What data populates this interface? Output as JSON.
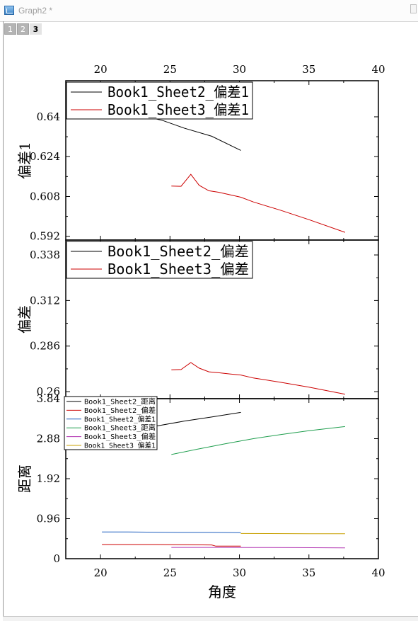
{
  "window": {
    "title": "Graph2 *",
    "layer_tabs": [
      {
        "label": "1",
        "active": false
      },
      {
        "label": "2",
        "active": false
      },
      {
        "label": "3",
        "active": true
      }
    ]
  },
  "chart_data": [
    {
      "type": "line",
      "panel": "top",
      "ylabel": "偏差1",
      "xlim": [
        17.5,
        40
      ],
      "ylim": [
        0.5905,
        0.6545
      ],
      "yticks": [
        "0.592",
        "0.608",
        "0.624",
        "0.64"
      ],
      "top_xticks": [
        "20",
        "25",
        "30",
        "35",
        "40"
      ],
      "legend_position": "top-left",
      "grid": false,
      "series": [
        {
          "name": "Book1_Sheet2_偏差1",
          "color": "#000000",
          "x": [
            20.1,
            22,
            24.5,
            26,
            28,
            30.1
          ],
          "y": [
            0.644,
            0.6418,
            0.6385,
            0.6355,
            0.6322,
            0.6265
          ]
        },
        {
          "name": "Book1_Sheet3_偏差1",
          "color": "#cc0000",
          "x": [
            25.1,
            25.8,
            26.5,
            27.1,
            27.8,
            28.5,
            29.3,
            30.1,
            31,
            33,
            35,
            37.6
          ],
          "y": [
            0.6122,
            0.6121,
            0.6169,
            0.6125,
            0.6103,
            0.6097,
            0.6087,
            0.6077,
            0.6058,
            0.6024,
            0.5987,
            0.5936
          ]
        }
      ]
    },
    {
      "type": "line",
      "panel": "middle",
      "ylabel": "偏差",
      "xlim": [
        17.5,
        40
      ],
      "ylim": [
        0.256,
        0.3465
      ],
      "yticks": [
        "0.26",
        "0.286",
        "0.312",
        "0.338"
      ],
      "legend_position": "top-left",
      "grid": false,
      "series": [
        {
          "name": "Book1_Sheet2_偏差",
          "color": "#000000",
          "x": [
            20.1,
            24,
            27,
            30.1
          ],
          "y": [
            0.34,
            0.336,
            0.332,
            0.3265
          ]
        },
        {
          "name": "Book1_Sheet3_偏差",
          "color": "#cc0000",
          "x": [
            25.1,
            25.8,
            26.5,
            27.1,
            27.8,
            28.5,
            29.3,
            30.1,
            31,
            33,
            35,
            37.6
          ],
          "y": [
            0.2725,
            0.2726,
            0.2766,
            0.2734,
            0.2713,
            0.2708,
            0.2701,
            0.2695,
            0.2678,
            0.2653,
            0.2626,
            0.2585
          ]
        }
      ]
    },
    {
      "type": "line",
      "panel": "bottom",
      "ylabel": "距离",
      "xlabel": "角度",
      "xlim": [
        17.5,
        40
      ],
      "ylim": [
        0,
        3.84
      ],
      "yticks": [
        "0",
        "0.96",
        "1.92",
        "2.88",
        "3.84"
      ],
      "xticks": [
        "20",
        "25",
        "30",
        "35",
        "40"
      ],
      "legend_position": "top-left",
      "grid": false,
      "series": [
        {
          "name": "Book1_Sheet2_距离",
          "color": "#000000",
          "x": [
            20.1,
            22,
            24,
            26,
            28,
            30.1
          ],
          "y": [
            2.95,
            3.07,
            3.18,
            3.3,
            3.4,
            3.51
          ]
        },
        {
          "name": "Book1_Sheet2_偏差",
          "color": "#cc0000",
          "x": [
            20.1,
            22,
            24,
            26,
            28,
            28.3,
            30.1
          ],
          "y": [
            0.34,
            0.34,
            0.34,
            0.335,
            0.33,
            0.3,
            0.3
          ]
        },
        {
          "name": "Book1_Sheet2_偏差1",
          "color": "#1f5fbf",
          "x": [
            20.1,
            22,
            24,
            26,
            28,
            30.1
          ],
          "y": [
            0.64,
            0.64,
            0.635,
            0.63,
            0.63,
            0.625
          ]
        },
        {
          "name": "Book1_Sheet3_距离",
          "color": "#1f9e4e",
          "x": [
            25.1,
            27,
            29,
            31,
            33,
            35,
            37.6
          ],
          "y": [
            2.5,
            2.63,
            2.76,
            2.88,
            2.98,
            3.07,
            3.17
          ]
        },
        {
          "name": "Book1_Sheet3_偏差",
          "color": "#b030b0",
          "x": [
            25.1,
            28,
            31,
            34,
            37.6
          ],
          "y": [
            0.27,
            0.27,
            0.268,
            0.265,
            0.26
          ]
        },
        {
          "name": "Book1_Sheet3_偏差1",
          "color": "#c8a000",
          "x": [
            30.1,
            32,
            35,
            37.6
          ],
          "y": [
            0.605,
            0.603,
            0.6,
            0.598
          ]
        }
      ]
    }
  ]
}
